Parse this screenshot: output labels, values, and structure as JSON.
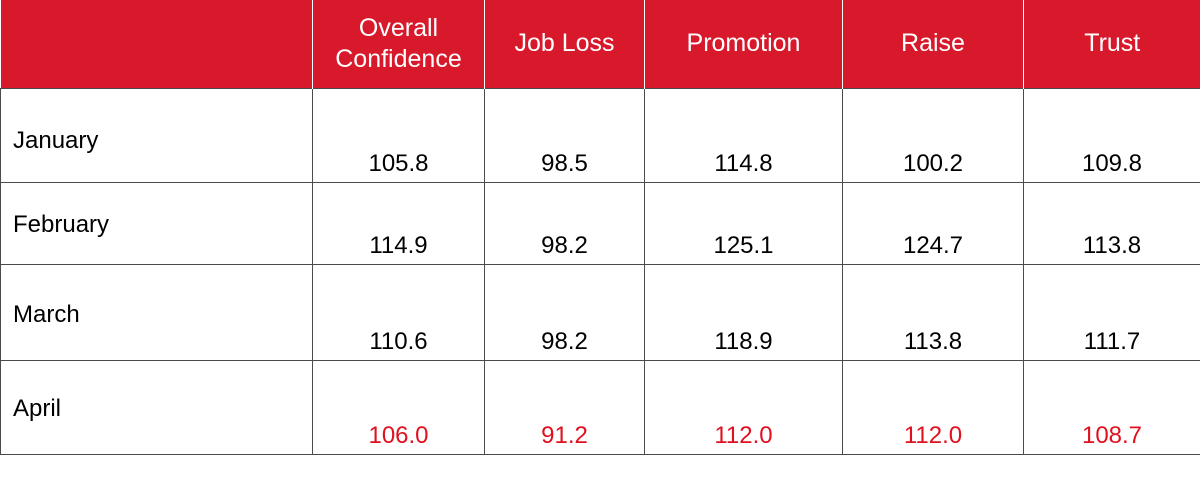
{
  "table": {
    "columns": [
      "",
      "Overall Confidence",
      "Job Loss",
      "Promotion",
      "Raise",
      "Trust"
    ],
    "rows": [
      {
        "month": "January",
        "values": [
          "105.8",
          "98.5",
          "114.8",
          "100.2",
          "109.8"
        ]
      },
      {
        "month": "February",
        "values": [
          "114.9",
          "98.2",
          "125.1",
          "124.7",
          "113.8"
        ]
      },
      {
        "month": "March",
        "values": [
          "110.6",
          "98.2",
          "118.9",
          "113.8",
          "111.7"
        ]
      },
      {
        "month": "April",
        "values": [
          "106.0",
          "91.2",
          "112.0",
          "112.0",
          "108.7"
        ]
      }
    ]
  },
  "colors": {
    "header_bg": "#d8182b",
    "header_text": "#ffffff",
    "highlight_text": "#e0101e"
  }
}
